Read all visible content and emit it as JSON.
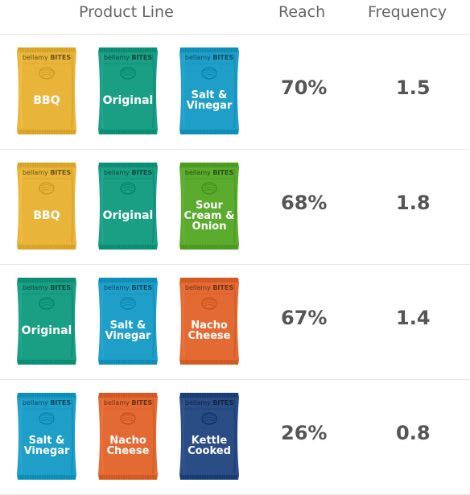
{
  "header": {
    "product_line": "Product Line",
    "reach": "Reach",
    "frequency": "Frequency"
  },
  "brand": {
    "prefix": "bellamy",
    "name": "BITES"
  },
  "colors": {
    "bbq": "#e8b43a",
    "original": "#1a9e84",
    "salt_vinegar": "#1f9fc8",
    "sour_cream": "#5aab2e",
    "nacho": "#e46a34",
    "kettle": "#2a4d86"
  },
  "rows": [
    {
      "bags": [
        {
          "flavor": "BBQ",
          "color": "#e8b43a"
        },
        {
          "flavor": "Original",
          "color": "#1a9e84"
        },
        {
          "flavor": "Salt &\nVinegar",
          "color": "#1f9fc8"
        }
      ],
      "reach": "70%",
      "frequency": "1.5"
    },
    {
      "bags": [
        {
          "flavor": "BBQ",
          "color": "#e8b43a"
        },
        {
          "flavor": "Original",
          "color": "#1a9e84"
        },
        {
          "flavor": "Sour\nCream &\nOnion",
          "color": "#5aab2e"
        }
      ],
      "reach": "68%",
      "frequency": "1.8"
    },
    {
      "bags": [
        {
          "flavor": "Original",
          "color": "#1a9e84"
        },
        {
          "flavor": "Salt &\nVinegar",
          "color": "#1f9fc8"
        },
        {
          "flavor": "Nacho\nCheese",
          "color": "#e46a34"
        }
      ],
      "reach": "67%",
      "frequency": "1.4"
    },
    {
      "bags": [
        {
          "flavor": "Salt &\nVinegar",
          "color": "#1f9fc8"
        },
        {
          "flavor": "Nacho\nCheese",
          "color": "#e46a34"
        },
        {
          "flavor": "Kettle\nCooked",
          "color": "#2a4d86"
        }
      ],
      "reach": "26%",
      "frequency": "0.8"
    }
  ]
}
